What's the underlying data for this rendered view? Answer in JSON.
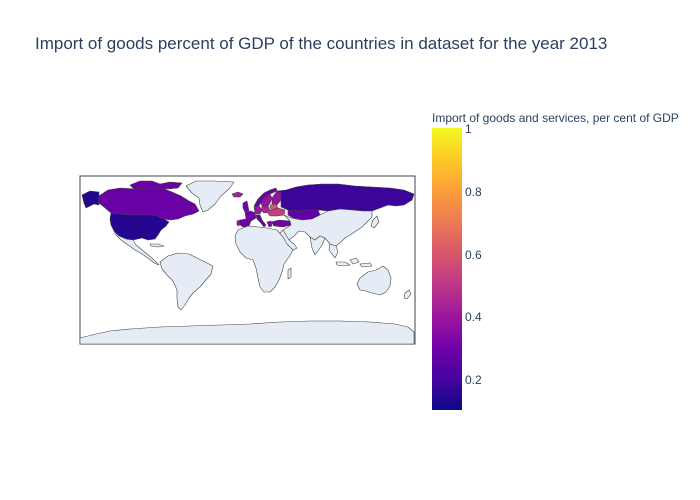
{
  "chart": {
    "title": "Import of goods percent of GDP of the countries in dataset for the year 2013"
  },
  "colorbar": {
    "title": "Import of goods and services, per cent of GDP",
    "range": [
      0.1,
      1.0
    ],
    "colorscale": [
      "#0d0887",
      "#46039f",
      "#7201a8",
      "#9c179e",
      "#bd3786",
      "#d8576b",
      "#ed7953",
      "#fb9f3a",
      "#fdca26",
      "#f0f921"
    ],
    "ticks": [
      "0.2",
      "0.4",
      "0.6",
      "0.8",
      "1"
    ]
  },
  "chart_data": {
    "type": "choropleth",
    "title": "Import of goods percent of GDP of the countries in dataset for the year 2013",
    "projection": "equirectangular",
    "land_color": "#e5ecf6",
    "border_color": "#444444",
    "colorbar_title": "Import of goods and services, per cent of GDP",
    "zrange": [
      0.1,
      1.0
    ],
    "regions": [
      {
        "name": "United States",
        "value": 0.14
      },
      {
        "name": "Canada",
        "value": 0.28
      },
      {
        "name": "Russia",
        "value": 0.18
      },
      {
        "name": "Norway",
        "value": 0.28
      },
      {
        "name": "Sweden",
        "value": 0.38
      },
      {
        "name": "Finland",
        "value": 0.38
      },
      {
        "name": "United Kingdom",
        "value": 0.3
      },
      {
        "name": "Germany",
        "value": 0.4
      },
      {
        "name": "France",
        "value": 0.29
      },
      {
        "name": "Spain",
        "value": 0.29
      },
      {
        "name": "Italy",
        "value": 0.26
      },
      {
        "name": "Poland",
        "value": 0.45
      },
      {
        "name": "Ukraine",
        "value": 0.52
      },
      {
        "name": "Iceland",
        "value": 0.43
      },
      {
        "name": "Greenland",
        "value": null
      },
      {
        "name": "Portugal",
        "value": 0.38
      },
      {
        "name": "Greece",
        "value": 0.33
      },
      {
        "name": "Turkey",
        "value": 0.3
      },
      {
        "name": "Kazakhstan",
        "value": 0.26
      },
      {
        "name": "Belarus",
        "value": 0.6
      }
    ]
  }
}
